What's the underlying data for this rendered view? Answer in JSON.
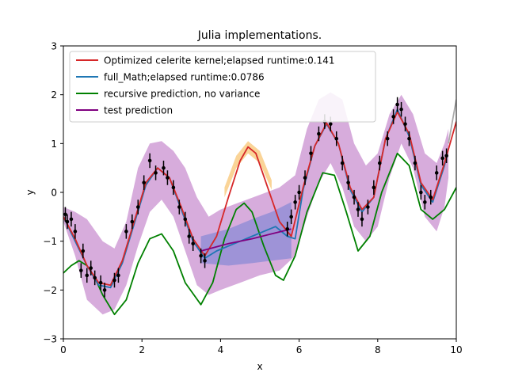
{
  "chart_data": {
    "type": "line",
    "title": "Julia implementations.",
    "xlabel": "x",
    "ylabel": "y",
    "xlim": [
      0,
      10
    ],
    "ylim": [
      -3,
      3
    ],
    "xticks": [
      0,
      2,
      4,
      6,
      8,
      10
    ],
    "xtick_labels": [
      "0",
      "2",
      "4",
      "6",
      "8",
      "10"
    ],
    "yticks": [
      -3,
      -2,
      -1,
      0,
      1,
      2,
      3
    ],
    "ytick_labels": [
      "−3",
      "−2",
      "−1",
      "0",
      "1",
      "2",
      "3"
    ],
    "grid": false,
    "legend_position": "top-left",
    "series": [
      {
        "name": "Optimized celerite kernel;elapsed runtime:0.141",
        "color": "#d62728",
        "x": [
          0.0,
          0.3,
          0.6,
          0.9,
          1.2,
          1.5,
          1.8,
          2.1,
          2.4,
          2.7,
          3.0,
          3.3,
          3.6,
          3.9,
          4.2,
          4.5,
          4.7,
          4.9,
          5.2,
          5.5,
          5.8,
          6.1,
          6.4,
          6.7,
          7.0,
          7.3,
          7.6,
          7.9,
          8.2,
          8.5,
          8.8,
          9.1,
          9.4,
          9.7,
          10.0
        ],
        "y": [
          -0.5,
          -0.95,
          -1.5,
          -1.85,
          -1.9,
          -1.4,
          -0.6,
          0.2,
          0.5,
          0.3,
          -0.3,
          -0.95,
          -1.3,
          -0.9,
          -0.1,
          0.65,
          0.93,
          0.8,
          0.1,
          -0.6,
          -0.9,
          0.1,
          0.95,
          1.42,
          1.0,
          0.1,
          -0.35,
          -0.1,
          1.1,
          1.65,
          1.2,
          0.2,
          -0.15,
          0.6,
          1.45
        ]
      },
      {
        "name": "full_Math;elapsed runtime:0.0786",
        "color": "#1f77b4",
        "x": [
          0.0,
          0.3,
          0.6,
          0.9,
          1.2,
          1.5,
          1.8,
          2.1,
          2.4,
          2.7,
          3.0,
          3.3,
          3.6,
          3.9,
          4.2,
          4.5,
          4.8,
          5.1,
          5.4,
          5.7,
          5.9,
          6.1,
          6.4,
          6.7,
          7.0,
          7.3,
          7.6,
          7.9,
          8.2,
          8.5,
          8.8,
          9.1,
          9.4,
          9.7,
          9.8
        ],
        "y": [
          -0.5,
          -1.0,
          -1.5,
          -1.9,
          -1.95,
          -1.45,
          -0.65,
          0.15,
          0.5,
          0.3,
          -0.35,
          -1.0,
          -1.35,
          -1.2,
          -1.1,
          -1.0,
          -0.9,
          -0.8,
          -0.7,
          -0.9,
          -0.95,
          0.05,
          0.95,
          1.4,
          1.0,
          0.05,
          -0.4,
          -0.1,
          1.1,
          1.7,
          1.15,
          0.15,
          -0.2,
          0.55,
          0.9
        ]
      },
      {
        "name": "recursive prediction, no variance",
        "color": "#008000",
        "x": [
          0.0,
          0.2,
          0.4,
          0.6,
          0.8,
          1.0,
          1.3,
          1.6,
          1.9,
          2.2,
          2.5,
          2.8,
          3.1,
          3.5,
          3.8,
          4.1,
          4.4,
          4.6,
          4.8,
          5.1,
          5.4,
          5.6,
          5.9,
          6.2,
          6.6,
          6.9,
          7.2,
          7.5,
          7.8,
          8.1,
          8.5,
          8.8,
          9.1,
          9.4,
          9.7,
          10.0
        ],
        "y": [
          -1.65,
          -1.5,
          -1.4,
          -1.5,
          -1.75,
          -2.1,
          -2.5,
          -2.2,
          -1.45,
          -0.95,
          -0.85,
          -1.2,
          -1.85,
          -2.3,
          -1.85,
          -0.95,
          -0.35,
          -0.22,
          -0.4,
          -1.1,
          -1.7,
          -1.8,
          -1.3,
          -0.4,
          0.4,
          0.35,
          -0.4,
          -1.2,
          -0.9,
          0.0,
          0.8,
          0.55,
          -0.35,
          -0.55,
          -0.35,
          0.1
        ]
      },
      {
        "name": "test prediction",
        "color": "#800080",
        "x": [
          3.5,
          4.2,
          4.8,
          5.3,
          5.8
        ],
        "y": [
          -1.2,
          -1.05,
          -0.95,
          -0.85,
          -0.75
        ]
      }
    ],
    "observations": {
      "color": "#000000",
      "points": [
        {
          "x": 0.05,
          "y": -0.45
        },
        {
          "x": 0.1,
          "y": -0.6
        },
        {
          "x": 0.2,
          "y": -0.55
        },
        {
          "x": 0.3,
          "y": -0.8
        },
        {
          "x": 0.45,
          "y": -1.6
        },
        {
          "x": 0.5,
          "y": -1.2
        },
        {
          "x": 0.6,
          "y": -1.7
        },
        {
          "x": 0.7,
          "y": -1.55
        },
        {
          "x": 0.8,
          "y": -1.75
        },
        {
          "x": 0.95,
          "y": -1.85
        },
        {
          "x": 1.05,
          "y": -2.0
        },
        {
          "x": 1.3,
          "y": -1.8
        },
        {
          "x": 1.4,
          "y": -1.7
        },
        {
          "x": 1.6,
          "y": -0.8
        },
        {
          "x": 1.75,
          "y": -0.6
        },
        {
          "x": 1.9,
          "y": -0.3
        },
        {
          "x": 2.05,
          "y": 0.2
        },
        {
          "x": 2.2,
          "y": 0.65
        },
        {
          "x": 2.35,
          "y": 0.4
        },
        {
          "x": 2.55,
          "y": 0.5
        },
        {
          "x": 2.65,
          "y": 0.3
        },
        {
          "x": 2.8,
          "y": 0.1
        },
        {
          "x": 2.95,
          "y": -0.3
        },
        {
          "x": 3.1,
          "y": -0.55
        },
        {
          "x": 3.2,
          "y": -0.9
        },
        {
          "x": 3.3,
          "y": -1.05
        },
        {
          "x": 3.5,
          "y": -1.3
        },
        {
          "x": 3.6,
          "y": -1.4
        },
        {
          "x": 5.7,
          "y": -0.75
        },
        {
          "x": 5.8,
          "y": -0.5
        },
        {
          "x": 5.9,
          "y": -0.2
        },
        {
          "x": 6.0,
          "y": 0.0
        },
        {
          "x": 6.15,
          "y": 0.3
        },
        {
          "x": 6.3,
          "y": 0.8
        },
        {
          "x": 6.5,
          "y": 1.2
        },
        {
          "x": 6.65,
          "y": 1.45
        },
        {
          "x": 6.8,
          "y": 1.4
        },
        {
          "x": 6.95,
          "y": 1.1
        },
        {
          "x": 7.1,
          "y": 0.6
        },
        {
          "x": 7.25,
          "y": 0.2
        },
        {
          "x": 7.4,
          "y": -0.1
        },
        {
          "x": 7.5,
          "y": -0.35
        },
        {
          "x": 7.6,
          "y": -0.55
        },
        {
          "x": 7.75,
          "y": -0.3
        },
        {
          "x": 7.9,
          "y": 0.1
        },
        {
          "x": 8.05,
          "y": 0.6
        },
        {
          "x": 8.25,
          "y": 1.1
        },
        {
          "x": 8.4,
          "y": 1.55
        },
        {
          "x": 8.5,
          "y": 1.8
        },
        {
          "x": 8.6,
          "y": 1.7
        },
        {
          "x": 8.7,
          "y": 1.4
        },
        {
          "x": 8.8,
          "y": 1.1
        },
        {
          "x": 8.95,
          "y": 0.6
        },
        {
          "x": 9.1,
          "y": 0.0
        },
        {
          "x": 9.2,
          "y": -0.2
        },
        {
          "x": 9.35,
          "y": -0.1
        },
        {
          "x": 9.5,
          "y": 0.4
        },
        {
          "x": 9.65,
          "y": 0.7
        },
        {
          "x": 9.75,
          "y": 0.75
        }
      ]
    },
    "bands": [
      {
        "label": "purple variance band",
        "color": "#9b30a8",
        "x": [
          0.0,
          0.3,
          0.6,
          1.0,
          1.3,
          1.6,
          1.9,
          2.2,
          2.5,
          2.8,
          3.1,
          3.4,
          3.7,
          4.0,
          4.5,
          5.0,
          5.5,
          5.9,
          6.2,
          6.5,
          6.8,
          7.1,
          7.4,
          7.7,
          8.0,
          8.3,
          8.6,
          8.9,
          9.2,
          9.5,
          9.7,
          9.8
        ],
        "lower": [
          -0.6,
          -1.3,
          -2.2,
          -2.5,
          -2.4,
          -1.9,
          -1.1,
          -0.4,
          -0.15,
          -0.5,
          -1.2,
          -1.9,
          -2.1,
          -2.0,
          -1.85,
          -1.7,
          -1.6,
          -1.3,
          -0.5,
          0.2,
          0.6,
          0.1,
          -0.7,
          -1.0,
          -0.7,
          0.3,
          1.0,
          0.5,
          -0.5,
          -0.8,
          -0.3,
          0.3
        ],
        "upper": [
          -0.3,
          -0.4,
          -0.55,
          -1.0,
          -1.15,
          -0.6,
          0.5,
          1.0,
          1.05,
          0.85,
          0.5,
          -0.1,
          -0.5,
          -0.35,
          -0.2,
          -0.05,
          0.1,
          0.35,
          1.3,
          1.9,
          2.05,
          1.9,
          1.0,
          0.55,
          0.8,
          1.6,
          2.0,
          1.6,
          0.8,
          0.6,
          1.0,
          1.3
        ]
      },
      {
        "label": "blue variance band",
        "color": "#6f7fd4",
        "x": [
          3.5,
          4.2,
          4.8,
          5.3,
          5.8
        ],
        "lower": [
          -1.45,
          -1.5,
          -1.45,
          -1.4,
          -1.35
        ],
        "upper": [
          -0.9,
          -0.75,
          -0.55,
          -0.4,
          -0.2
        ]
      },
      {
        "label": "orange variance band",
        "color": "#f5b041",
        "x": [
          4.1,
          4.4,
          4.7,
          5.0,
          5.3
        ],
        "lower": [
          -0.1,
          0.5,
          0.8,
          0.6,
          0.05
        ],
        "upper": [
          0.1,
          0.75,
          1.05,
          0.85,
          0.25
        ]
      }
    ],
    "grey_extension": {
      "color": "#aaaaaa",
      "x": [
        9.8,
        9.9,
        10.0
      ],
      "y": [
        1.0,
        1.45,
        1.9
      ]
    }
  }
}
